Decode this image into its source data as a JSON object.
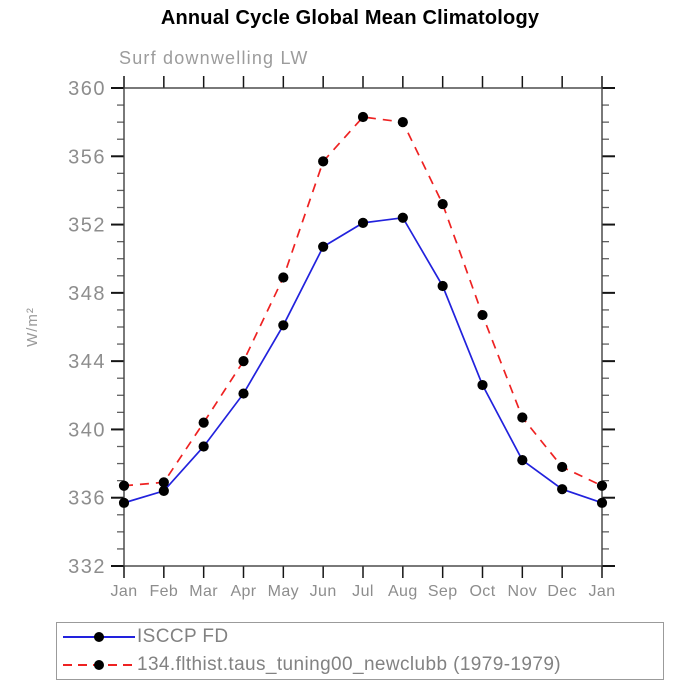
{
  "page_title": "Annual Cycle Global Mean Climatology",
  "colors": {
    "series_blue": "#2222dd",
    "series_red": "#ee2222",
    "marker_black": "#000000",
    "axis": "#404040",
    "tick_major": "#151515",
    "tick_minor": "#606060",
    "tick_label_gray": "#8d8d8d",
    "subtitle_gray": "#9c9c9c",
    "legend_border": "#9b9b9b",
    "background": "#ffffff"
  },
  "chart_data": {
    "type": "line",
    "title": "Annual Cycle Global Mean Climatology",
    "subtitle": "Surf downwelling LW",
    "xlabel": "",
    "ylabel": "W/m²",
    "categories": [
      "Jan",
      "Feb",
      "Mar",
      "Apr",
      "May",
      "Jun",
      "Jul",
      "Aug",
      "Sep",
      "Oct",
      "Nov",
      "Dec",
      "Jan"
    ],
    "ylim": [
      332,
      360
    ],
    "yticks": [
      332,
      336,
      340,
      344,
      348,
      352,
      356,
      360
    ],
    "ytick_step": 4,
    "yminor_step": 1,
    "grid": false,
    "legend_position": "bottom-left-box",
    "series": [
      {
        "name": "ISCCP FD",
        "color": "#2222dd",
        "style": "solid",
        "marker": "filled-circle",
        "marker_color": "#000000",
        "values": [
          335.7,
          336.4,
          339.0,
          342.1,
          346.1,
          350.7,
          352.1,
          352.4,
          348.4,
          342.6,
          338.2,
          336.5,
          335.7
        ]
      },
      {
        "name": "134.flthist.taus_tuning00_newclubb (1979-1979)",
        "color": "#ee2222",
        "style": "dashed",
        "marker": "filled-circle",
        "marker_color": "#000000",
        "values": [
          336.7,
          336.9,
          340.4,
          344.0,
          348.9,
          355.7,
          358.3,
          358.0,
          353.2,
          346.7,
          340.7,
          337.8,
          336.7
        ]
      }
    ]
  }
}
